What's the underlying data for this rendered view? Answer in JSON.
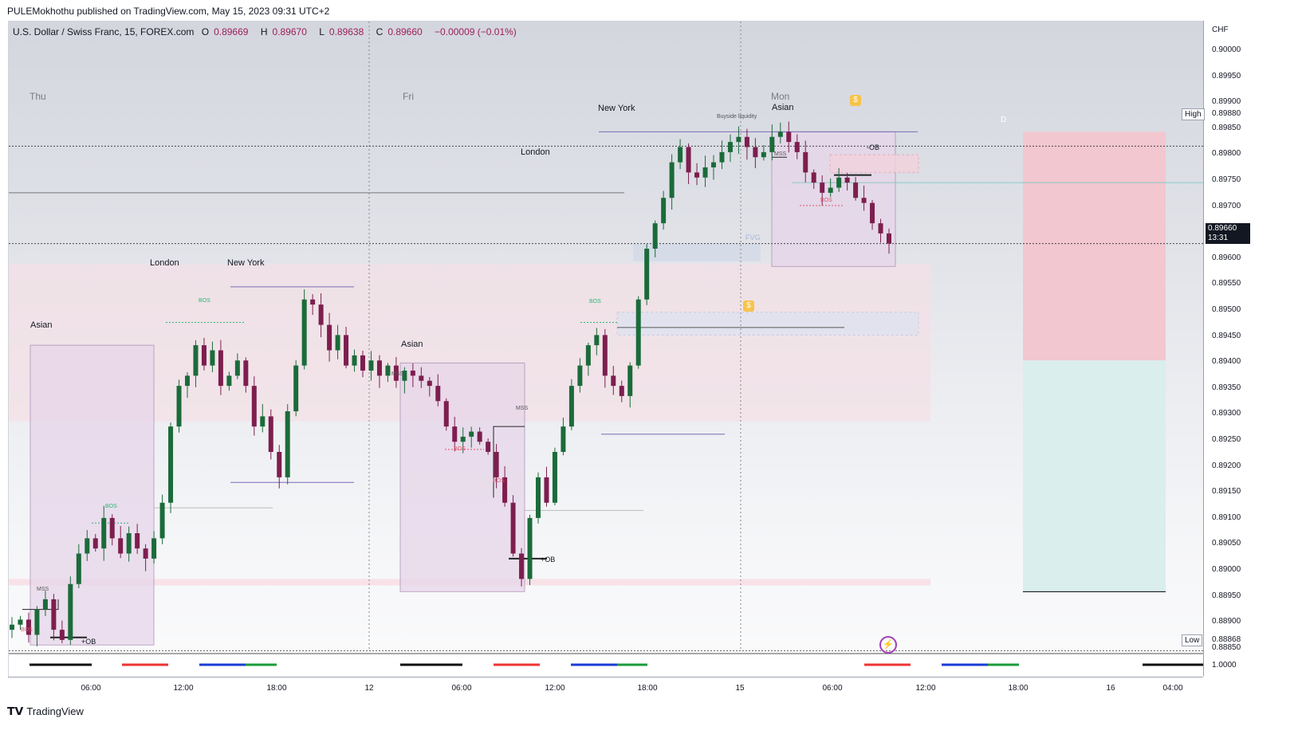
{
  "header": {
    "publisher_line": "PULEMokhothu published on TradingView.com, May 15, 2023 09:31 UTC+2"
  },
  "legend": {
    "symbol": "U.S. Dollar / Swiss Franc, 15, FOREX.com",
    "open_label": "O",
    "open": "0.89669",
    "high_label": "H",
    "high": "0.89670",
    "low_label": "L",
    "low": "0.89638",
    "close_label": "C",
    "close": "0.89660",
    "change": "−0.00009 (−0.01%)"
  },
  "yaxis": {
    "currency": "CHF",
    "ticks": [
      "0.90000",
      "0.89950",
      "0.89900",
      "0.89850",
      "0.89800",
      "0.89750",
      "0.89700",
      "0.89650",
      "0.89600",
      "0.89550",
      "0.89500",
      "0.89450",
      "0.89400",
      "0.89350",
      "0.89300",
      "0.89250",
      "0.89200",
      "0.89150",
      "0.89100",
      "0.89050",
      "0.89000",
      "0.88950",
      "0.88900",
      "0.88850"
    ],
    "current_price": "0.89660",
    "countdown": "13:31",
    "high_tag": "High",
    "high_value": "0.89880",
    "low_tag": "Low",
    "low_value": "0.88868",
    "indicator_tick": "1.0000"
  },
  "xaxis": {
    "ticks": [
      "06:00",
      "12:00",
      "18:00",
      "12",
      "06:00",
      "12:00",
      "18:00",
      "15",
      "06:00",
      "12:00",
      "18:00",
      "16",
      "04:00"
    ]
  },
  "days": [
    "Thu",
    "Fri",
    "Mon"
  ],
  "sessions": {
    "asian_1": "Asian",
    "london_1": "London",
    "newyork_1": "New York",
    "asian_2": "Asian",
    "london_2": "London",
    "newyork_2": "New York",
    "asian_3": "Asian"
  },
  "markers": {
    "bos": "BOS",
    "mss": "MSS",
    "plus_ob": "+OB",
    "minus_ob": "-OB",
    "buyside": "Buyside liquidity",
    "fvg": "FVG",
    "d": "D"
  },
  "footer": {
    "brand": "TradingView"
  },
  "colors": {
    "bull": "#1b6b3a",
    "bear": "#7d1e4e",
    "asian_box": "#e7d6ea",
    "short_red": "#f2c7cf",
    "short_green": "#d9eeed"
  },
  "chart_data": {
    "type": "candlestick",
    "symbol": "USDCHF",
    "timeframe": "15",
    "ylim": [
      0.8885,
      0.9005
    ],
    "last_close": 0.8966,
    "close_path": [
      0.8891,
      0.8892,
      0.8889,
      0.8894,
      0.8896,
      0.889,
      0.8888,
      0.8899,
      0.8905,
      0.8908,
      0.8906,
      0.8912,
      0.8908,
      0.8905,
      0.8909,
      0.8906,
      0.8904,
      0.8908,
      0.8915,
      0.893,
      0.8938,
      0.894,
      0.8946,
      0.8942,
      0.8945,
      0.8938,
      0.894,
      0.8943,
      0.8938,
      0.893,
      0.8932,
      0.8925,
      0.892,
      0.8933,
      0.8942,
      0.8955,
      0.8954,
      0.895,
      0.8945,
      0.8948,
      0.8942,
      0.8944,
      0.8941,
      0.8943,
      0.894,
      0.8942,
      0.8939,
      0.8941,
      0.894,
      0.8939,
      0.8938,
      0.8935,
      0.893,
      0.8927,
      0.8928,
      0.8929,
      0.8927,
      0.8925,
      0.892,
      0.8915,
      0.8905,
      0.89,
      0.8912,
      0.892,
      0.8915,
      0.8925,
      0.893,
      0.8938,
      0.8942,
      0.8946,
      0.8948,
      0.894,
      0.8938,
      0.8936,
      0.8942,
      0.8955,
      0.8965,
      0.897,
      0.8975,
      0.8982,
      0.8985,
      0.898,
      0.8979,
      0.8981,
      0.8982,
      0.8984,
      0.8986,
      0.8987,
      0.8985,
      0.8983,
      0.8984,
      0.8987,
      0.8988,
      0.8986,
      0.8984,
      0.898,
      0.8978,
      0.8976,
      0.8977,
      0.8979,
      0.8978,
      0.8975,
      0.8974,
      0.897,
      0.8968,
      0.8966
    ]
  }
}
